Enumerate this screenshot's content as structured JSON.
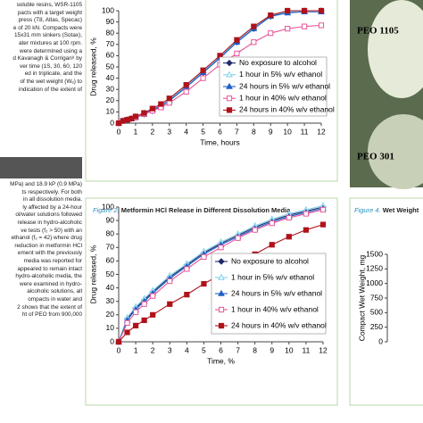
{
  "left_text": {
    "top_lines": [
      "soluble resins, WSR-1105",
      "pacts with a target weight",
      "press (T8, Atlas, Specac)",
      "e of 20 kN. Compacts were",
      "15x31 mm sinkers (Sotax),",
      "ater mixtures at 100 rpm.",
      "were determined using a",
      "d Kavanagh & Corrigan⁸ by",
      "ver time (1S, 30, 60, 120",
      "ed in triplicate, and the",
      "of the wet weight (Wₑ) to",
      "indication of the extent of"
    ],
    "bottom_lines": [
      "MPa) and 18.9 kP (0.9 MPa)",
      "ts respectively. For both",
      "in all dissolution media.",
      "ly affected by a 24-hour",
      "ol/water solutions followed",
      "release in hydro-alcoholic",
      "ve tests (f₂ > 50) with an",
      "ethanol (f₂ = 42) where drug",
      "reduction in metformin HCl",
      "ement with the previously",
      "media was reported for",
      "appeared to remain intact",
      "hydro-alcoholic media, the",
      "were examined in hydro-",
      "alcoholic solutions, all",
      "ompacts in water and",
      "2 shows that the extent of",
      "ht of PEO from 900,000"
    ]
  },
  "photo": {
    "labels": [
      "PEO 1105",
      "PEO 301"
    ]
  },
  "chart_data": [
    {
      "type": "line",
      "xlabel": "Time, hours",
      "ylabel": "Drug released, %",
      "xlim": [
        0,
        12
      ],
      "xticks": [
        0,
        1,
        2,
        3,
        4,
        5,
        6,
        7,
        8,
        9,
        10,
        11,
        12
      ],
      "ylim": [
        0,
        100
      ],
      "yticks": [
        0,
        10,
        20,
        30,
        40,
        50,
        60,
        70,
        80,
        90,
        100
      ],
      "x": [
        0,
        0.25,
        0.5,
        0.75,
        1,
        1.5,
        2,
        2.5,
        3,
        4,
        5,
        6,
        7,
        8,
        9,
        10,
        11,
        12
      ],
      "series": [
        {
          "name": "No exposure to alcohol",
          "color": "#1f2a6b",
          "marker": "diamond",
          "filled": true,
          "values": [
            0,
            2,
            3,
            4,
            5,
            8,
            11,
            15,
            20,
            32,
            45,
            58,
            72,
            84,
            95,
            99,
            100,
            100
          ]
        },
        {
          "name": "1 hour in 5% w/v ethanol",
          "color": "#7fd3e6",
          "marker": "triangle",
          "filled": false,
          "values": [
            0,
            2,
            3,
            4,
            6,
            9,
            12,
            16,
            21,
            33,
            46,
            59,
            73,
            85,
            96,
            99,
            100,
            100
          ]
        },
        {
          "name": "24 hours in 5% w/v ethanol",
          "color": "#1f5fc8",
          "marker": "triangle",
          "filled": true,
          "values": [
            0,
            2,
            3,
            4,
            5,
            8,
            12,
            15,
            20,
            32,
            45,
            58,
            72,
            84,
            95,
            98,
            99,
            99
          ]
        },
        {
          "name": "1 hour in 40% w/v ethanol",
          "color": "#e8559a",
          "marker": "square",
          "filled": false,
          "values": [
            0,
            2,
            3,
            4,
            5,
            8,
            11,
            14,
            18,
            28,
            40,
            52,
            62,
            72,
            80,
            84,
            86,
            87
          ]
        },
        {
          "name": "24 hours in 40% w/v ethanol",
          "color": "#b0121b",
          "marker": "square",
          "filled": true,
          "values": [
            0,
            2,
            3,
            4,
            6,
            9,
            13,
            17,
            22,
            34,
            47,
            60,
            74,
            86,
            96,
            100,
            100,
            100
          ]
        }
      ]
    },
    {
      "type": "line",
      "figure_label": "Figure 2.",
      "title": "Metformin HCl Release in Different Dissolution Media",
      "xlabel": "Time, %",
      "ylabel": "Drug released, %",
      "xlim": [
        0,
        12
      ],
      "xticks": [
        0,
        1,
        2,
        3,
        4,
        5,
        6,
        7,
        8,
        9,
        10,
        11,
        12
      ],
      "ylim": [
        0,
        100
      ],
      "yticks": [
        0,
        10,
        20,
        30,
        40,
        50,
        60,
        70,
        80,
        90,
        100
      ],
      "x": [
        0,
        0.5,
        1,
        1.5,
        2,
        3,
        4,
        5,
        6,
        7,
        8,
        9,
        10,
        11,
        12
      ],
      "series": [
        {
          "name": "No exposure to alcohol",
          "color": "#1f2a6b",
          "marker": "diamond",
          "filled": true,
          "values": [
            0,
            17,
            25,
            31,
            37,
            48,
            57,
            66,
            73,
            79,
            85,
            90,
            94,
            97,
            100
          ]
        },
        {
          "name": "1 hour in 5% w/v ethanol",
          "color": "#7fd3e6",
          "marker": "triangle",
          "filled": false,
          "values": [
            0,
            18,
            26,
            32,
            38,
            49,
            58,
            67,
            74,
            80,
            86,
            91,
            95,
            98,
            101
          ]
        },
        {
          "name": "24 hours in 5% w/v ethanol",
          "color": "#1f5fc8",
          "marker": "triangle",
          "filled": true,
          "values": [
            0,
            16,
            24,
            30,
            36,
            47,
            56,
            65,
            72,
            78,
            84,
            89,
            93,
            96,
            99
          ]
        },
        {
          "name": "1 hour in 40% w/v ethanol",
          "color": "#e8559a",
          "marker": "square",
          "filled": false,
          "values": [
            0,
            14,
            22,
            28,
            34,
            45,
            54,
            63,
            70,
            77,
            83,
            88,
            92,
            95,
            98
          ]
        },
        {
          "name": "24 hours in 40% w/v ethanol",
          "color": "#b0121b",
          "marker": "square",
          "filled": true,
          "values": [
            0,
            7,
            12,
            16,
            20,
            28,
            35,
            43,
            50,
            58,
            65,
            72,
            78,
            83,
            87
          ]
        }
      ]
    },
    {
      "type": "line",
      "figure_label": "Figure 4.",
      "title": "Wet Weight",
      "ylabel": "Compact Wet Weight, mg",
      "ylim": [
        0,
        1500
      ],
      "yticks": [
        0,
        250,
        500,
        750,
        1000,
        1250,
        1500
      ],
      "series": []
    }
  ]
}
